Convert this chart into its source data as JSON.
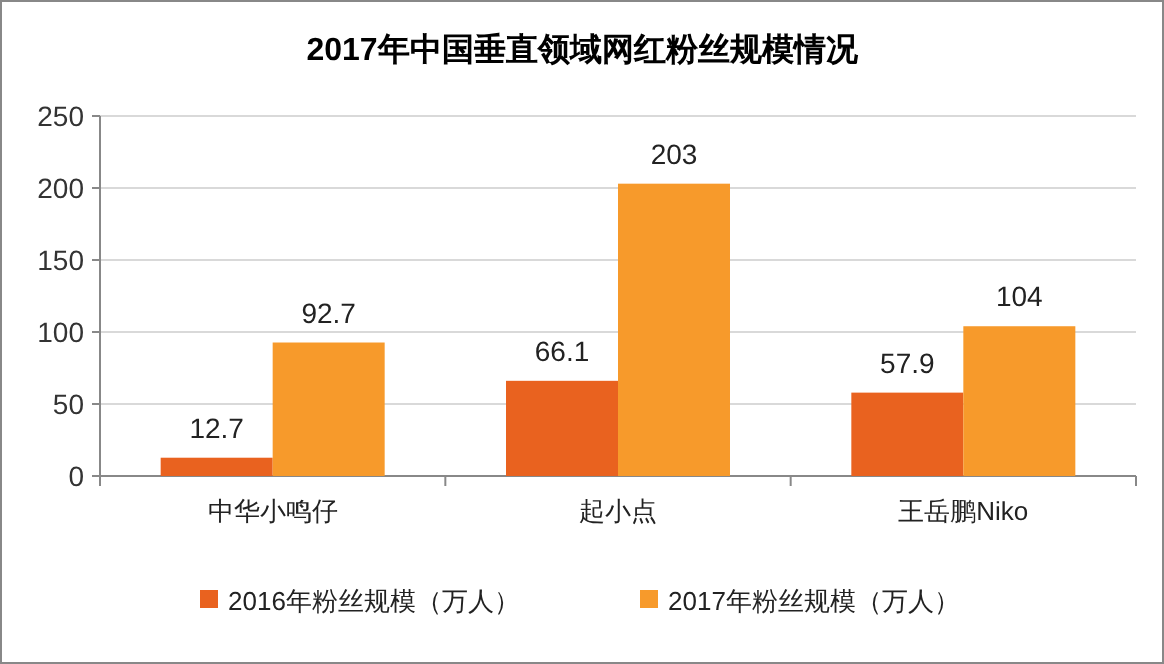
{
  "chart_data": {
    "type": "bar",
    "title": "2017年中国垂直领域网红粉丝规模情况",
    "categories": [
      "中华小鸣仔",
      "起小点",
      "王岳鹏Niko"
    ],
    "series": [
      {
        "name": "2016年粉丝规模（万人）",
        "color": "#e9621f",
        "values": [
          12.7,
          66.1,
          57.9
        ]
      },
      {
        "name": "2017年粉丝规模（万人）",
        "color": "#f79a2b",
        "values": [
          92.7,
          203,
          104
        ]
      }
    ],
    "ylim": [
      0,
      250
    ],
    "yticks": [
      0,
      50,
      100,
      150,
      200,
      250
    ],
    "grid": "y",
    "legend": "bottom",
    "data_labels": true
  }
}
